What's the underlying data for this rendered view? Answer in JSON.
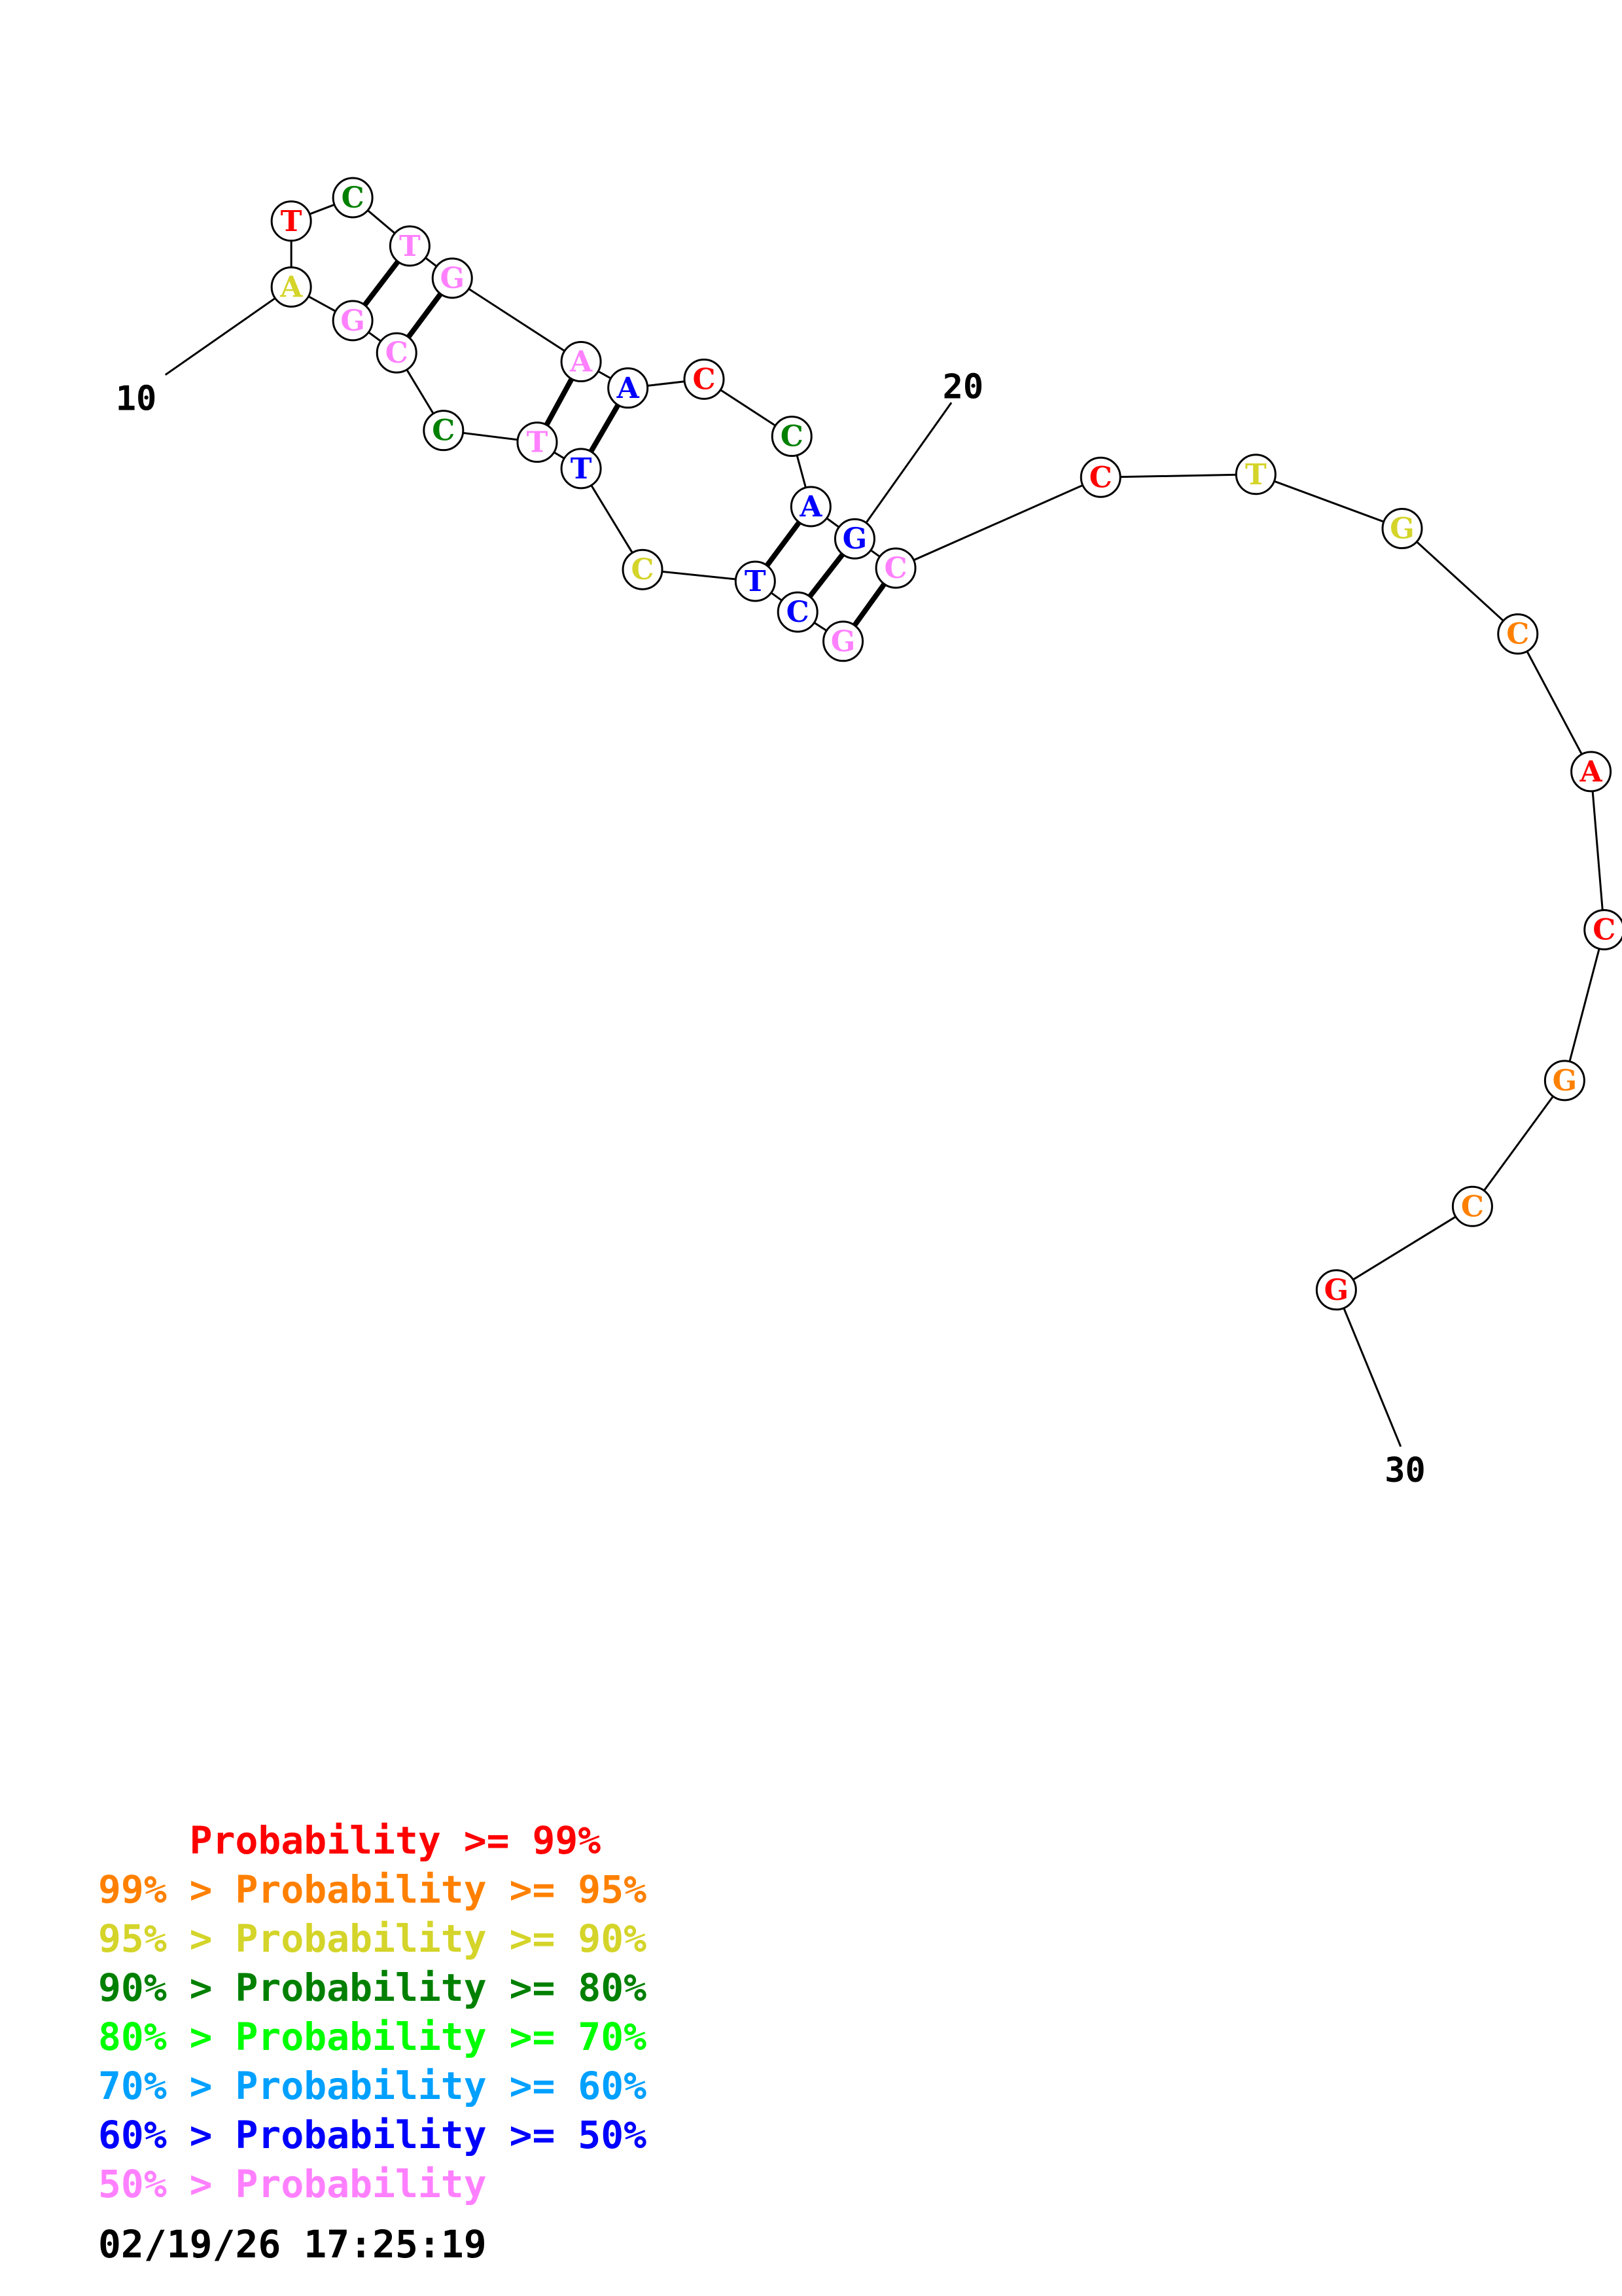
{
  "colors": {
    "p99": "#ff0000",
    "p95": "#ff8000",
    "p90": "#d4d42a",
    "p80": "#008000",
    "p70": "#00ff00",
    "p60": "#00a0ff",
    "p50": "#0000ff",
    "plt50": "#ff80ff"
  },
  "sequence": [
    {
      "n": 10,
      "base": "A",
      "color": "p90"
    },
    {
      "n": 11,
      "base": "T",
      "color": "p99"
    },
    {
      "n": 12,
      "base": "C",
      "color": "p80"
    },
    {
      "n": 13,
      "base": "T",
      "color": "plt50"
    },
    {
      "n": 14,
      "base": "G",
      "color": "plt50"
    },
    {
      "n": 15,
      "base": "A",
      "color": "plt50"
    },
    {
      "n": 16,
      "base": "A",
      "color": "p50"
    },
    {
      "n": 17,
      "base": "C",
      "color": "p99"
    },
    {
      "n": 18,
      "base": "C",
      "color": "p80"
    },
    {
      "n": 19,
      "base": "A",
      "color": "p50"
    },
    {
      "n": 20,
      "base": "G",
      "color": "p50"
    },
    {
      "n": 21,
      "base": "C",
      "color": "plt50"
    },
    {
      "n": 22,
      "base": "C",
      "color": "p99"
    },
    {
      "n": 23,
      "base": "T",
      "color": "p90"
    },
    {
      "n": 24,
      "base": "G",
      "color": "p90"
    },
    {
      "n": 25,
      "base": "C",
      "color": "p95"
    },
    {
      "n": 26,
      "base": "A",
      "color": "p99"
    },
    {
      "n": 27,
      "base": "C",
      "color": "p99"
    },
    {
      "n": 28,
      "base": "G",
      "color": "p95"
    },
    {
      "n": 29,
      "base": "C",
      "color": "p95"
    },
    {
      "n": 30,
      "base": "G",
      "color": "p99"
    }
  ],
  "complement": [
    {
      "base": "G",
      "color": "plt50"
    },
    {
      "base": "C",
      "color": "plt50"
    },
    {
      "base": "C",
      "color": "p80"
    },
    {
      "base": "T",
      "color": "plt50"
    },
    {
      "base": "T",
      "color": "p50"
    },
    {
      "base": "C",
      "color": "p90"
    },
    {
      "base": "T",
      "color": "p50"
    },
    {
      "base": "C",
      "color": "p50"
    },
    {
      "base": "G",
      "color": "plt50"
    }
  ],
  "position_labels": [
    "10",
    "20",
    "30"
  ],
  "legend": [
    {
      "prefix": "    ",
      "text": "Probability >= 99%",
      "color": "p99"
    },
    {
      "prefix": "99% > ",
      "text": "Probability >= 95%",
      "color": "p95"
    },
    {
      "prefix": "95% > ",
      "text": "Probability >= 90%",
      "color": "p90"
    },
    {
      "prefix": "90% > ",
      "text": "Probability >= 80%",
      "color": "p80"
    },
    {
      "prefix": "80% > ",
      "text": "Probability >= 70%",
      "color": "p70"
    },
    {
      "prefix": "70% > ",
      "text": "Probability >= 60%",
      "color": "p60"
    },
    {
      "prefix": "60% > ",
      "text": "Probability >= 50%",
      "color": "p50"
    },
    {
      "prefix": "50% > ",
      "text": "Probability",
      "color": "plt50"
    }
  ],
  "timestamp": "02/19/26 17:25:19"
}
